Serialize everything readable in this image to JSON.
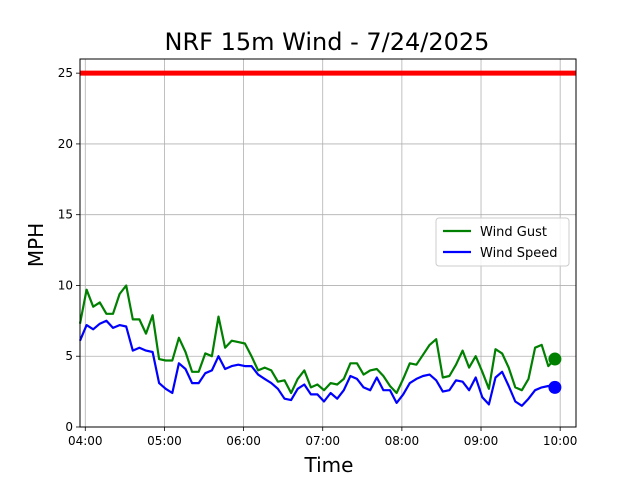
{
  "chart_data": {
    "type": "line",
    "title": "NRF 15m Wind - 7/24/2025",
    "xlabel": "Time",
    "ylabel": "MPH",
    "xlim": [
      "03:56",
      "10:12"
    ],
    "ylim": [
      0,
      26
    ],
    "xticks": [
      "04:00",
      "05:00",
      "06:00",
      "07:00",
      "08:00",
      "09:00",
      "10:00"
    ],
    "yticks": [
      0,
      5,
      10,
      15,
      20,
      25
    ],
    "grid": true,
    "legend_position": "right",
    "threshold": {
      "value": 25,
      "color": "#ff0000"
    },
    "x": [
      "03:56",
      "04:01",
      "04:06",
      "04:11",
      "04:16",
      "04:21",
      "04:26",
      "04:31",
      "04:36",
      "04:41",
      "04:46",
      "04:51",
      "04:56",
      "05:01",
      "05:06",
      "05:11",
      "05:16",
      "05:21",
      "05:26",
      "05:31",
      "05:36",
      "05:41",
      "05:46",
      "05:51",
      "05:56",
      "06:01",
      "06:06",
      "06:11",
      "06:16",
      "06:21",
      "06:26",
      "06:31",
      "06:36",
      "06:41",
      "06:46",
      "06:51",
      "06:56",
      "07:01",
      "07:06",
      "07:11",
      "07:16",
      "07:21",
      "07:26",
      "07:31",
      "07:36",
      "07:41",
      "07:46",
      "07:51",
      "07:56",
      "08:01",
      "08:06",
      "08:11",
      "08:16",
      "08:21",
      "08:26",
      "08:31",
      "08:36",
      "08:41",
      "08:46",
      "08:51",
      "08:56",
      "09:01",
      "09:06",
      "09:11",
      "09:16",
      "09:21",
      "09:26",
      "09:31",
      "09:36",
      "09:41",
      "09:46",
      "09:51",
      "09:56"
    ],
    "series": [
      {
        "name": "Wind Gust",
        "color": "#008000",
        "values": [
          7.3,
          9.7,
          8.5,
          8.8,
          8.0,
          8.0,
          9.4,
          10.0,
          7.6,
          7.6,
          6.6,
          7.9,
          4.8,
          4.7,
          4.7,
          6.3,
          5.3,
          3.9,
          3.9,
          5.2,
          5.0,
          7.8,
          5.6,
          6.1,
          6.0,
          5.9,
          5.0,
          4.0,
          4.2,
          4.0,
          3.2,
          3.3,
          2.4,
          3.4,
          4.0,
          2.8,
          3.0,
          2.6,
          3.1,
          3.0,
          3.4,
          4.5,
          4.5,
          3.7,
          4.0,
          4.1,
          3.6,
          2.9,
          2.4,
          3.4,
          4.5,
          4.4,
          5.1,
          5.8,
          6.2,
          3.5,
          3.6,
          4.4,
          5.4,
          4.2,
          5.0,
          3.9,
          2.7,
          5.5,
          5.2,
          4.2,
          2.8,
          2.6,
          3.4,
          5.6,
          5.8,
          4.3,
          4.8
        ]
      },
      {
        "name": "Wind Speed",
        "color": "#0000ff",
        "values": [
          6.1,
          7.2,
          6.9,
          7.3,
          7.5,
          7.0,
          7.2,
          7.1,
          5.4,
          5.6,
          5.4,
          5.3,
          3.1,
          2.7,
          2.4,
          4.5,
          4.1,
          3.1,
          3.1,
          3.8,
          4.0,
          5.0,
          4.1,
          4.3,
          4.4,
          4.3,
          4.3,
          3.7,
          3.4,
          3.1,
          2.7,
          2.0,
          1.9,
          2.7,
          3.0,
          2.3,
          2.3,
          1.8,
          2.4,
          2.0,
          2.6,
          3.6,
          3.4,
          2.8,
          2.6,
          3.5,
          2.6,
          2.6,
          1.7,
          2.3,
          3.1,
          3.4,
          3.6,
          3.7,
          3.3,
          2.5,
          2.6,
          3.3,
          3.2,
          2.6,
          3.5,
          2.1,
          1.6,
          3.5,
          3.9,
          2.9,
          1.8,
          1.5,
          2.0,
          2.6,
          2.8,
          2.9,
          2.8
        ]
      }
    ],
    "last_point_markers": true
  }
}
